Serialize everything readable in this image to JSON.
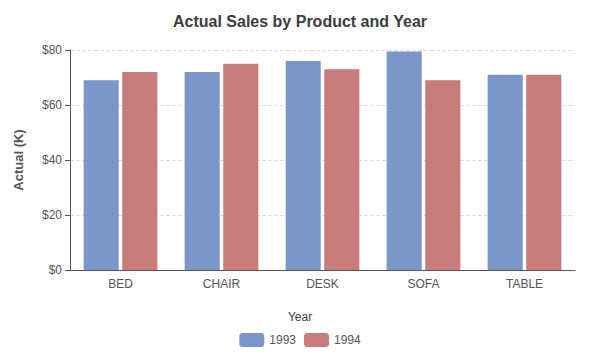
{
  "chart_data": {
    "type": "bar",
    "title": "Actual Sales by Product and Year",
    "ylabel": "Actual (K)",
    "categories": [
      "BED",
      "CHAIR",
      "DESK",
      "SOFA",
      "TABLE"
    ],
    "series": [
      {
        "name": "1993",
        "color": "#7B96C8",
        "values": [
          69,
          72,
          76,
          79.5,
          71
        ]
      },
      {
        "name": "1994",
        "color": "#C87B7B",
        "values": [
          72,
          75,
          73,
          69,
          71
        ]
      }
    ],
    "ylim": [
      0,
      80
    ],
    "yticks": [
      {
        "value": 0,
        "label": "$0"
      },
      {
        "value": 20,
        "label": "$20"
      },
      {
        "value": 40,
        "label": "$40"
      },
      {
        "value": 60,
        "label": "$60"
      },
      {
        "value": 80,
        "label": "$80"
      }
    ],
    "grid": true,
    "legend": "bottom",
    "legend_title": "Year"
  }
}
